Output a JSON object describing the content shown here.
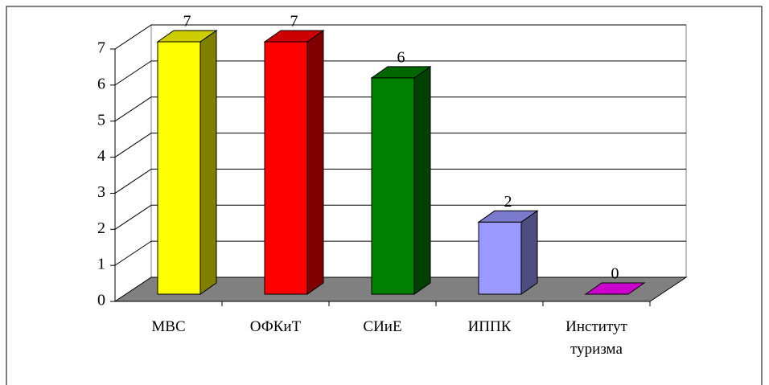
{
  "chart_data": {
    "type": "bar3d",
    "categories": [
      "МВС",
      "ОФКиТ",
      "СИиЕ",
      "ИППК",
      "Институт туризма"
    ],
    "values": [
      7,
      7,
      6,
      2,
      0
    ],
    "colors": [
      "#ffff00",
      "#ff0000",
      "#008000",
      "#9999ff",
      "#cc00cc"
    ],
    "ylim": [
      0,
      7
    ],
    "yticks": [
      0,
      1,
      2,
      3,
      4,
      5,
      6,
      7
    ],
    "grid": true
  }
}
